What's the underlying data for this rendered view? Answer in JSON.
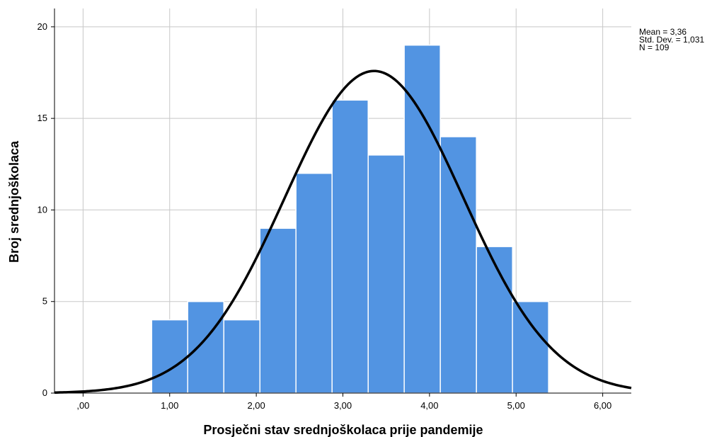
{
  "chart_data": {
    "type": "bar",
    "subtype": "histogram",
    "xlabel": "Prosječni stav srednjoškolaca prije pandemije",
    "ylabel": "Broj srednjoškolaca",
    "xlim": [
      -0.33,
      6.33
    ],
    "ylim": [
      0,
      21
    ],
    "x_ticks": [
      0,
      1,
      2,
      3,
      4,
      5,
      6
    ],
    "x_tick_labels": [
      ",00",
      "1,00",
      "2,00",
      "3,00",
      "4,00",
      "5,00",
      "6,00"
    ],
    "y_ticks": [
      0,
      5,
      10,
      15,
      20
    ],
    "y_tick_labels": [
      "0",
      "5",
      "10",
      "15",
      "20"
    ],
    "grid": true,
    "bin_width": 0.417,
    "bins": [
      {
        "start": 0.792,
        "count": 4
      },
      {
        "start": 1.208,
        "count": 5
      },
      {
        "start": 1.625,
        "count": 4
      },
      {
        "start": 2.042,
        "count": 9
      },
      {
        "start": 2.458,
        "count": 12
      },
      {
        "start": 2.875,
        "count": 16
      },
      {
        "start": 3.292,
        "count": 13
      },
      {
        "start": 3.708,
        "count": 19
      },
      {
        "start": 4.125,
        "count": 14
      },
      {
        "start": 4.542,
        "count": 8
      },
      {
        "start": 4.958,
        "count": 5
      }
    ],
    "normal_curve": {
      "mean": 3.36,
      "std": 1.031,
      "n": 109
    },
    "bar_color": "#5294e2",
    "bar_edge_color": "#ffffff",
    "curve_color": "#000000",
    "stats_lines": [
      "Mean = 3,36",
      "Std. Dev. = 1,031",
      "N = 109"
    ]
  }
}
